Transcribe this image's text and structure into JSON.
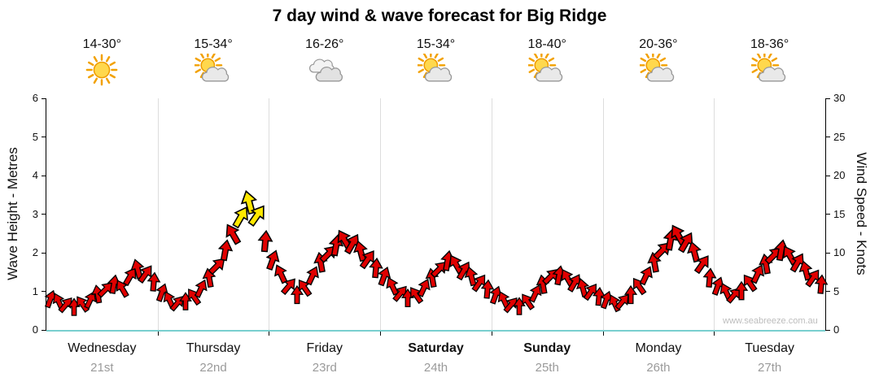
{
  "title": "7 day wind & wave forecast for Big Ridge",
  "watermark": "www.seabreeze.com.au",
  "days": [
    {
      "name": "Wednesday",
      "date": "21st",
      "temp": "14-30°",
      "icon": "sunny",
      "bold": false
    },
    {
      "name": "Thursday",
      "date": "22nd",
      "temp": "15-34°",
      "icon": "partly-cloudy",
      "bold": false
    },
    {
      "name": "Friday",
      "date": "23rd",
      "temp": "16-26°",
      "icon": "cloudy",
      "bold": false
    },
    {
      "name": "Saturday",
      "date": "24th",
      "temp": "15-34°",
      "icon": "partly-cloudy",
      "bold": true
    },
    {
      "name": "Sunday",
      "date": "25th",
      "temp": "18-40°",
      "icon": "partly-cloudy",
      "bold": true
    },
    {
      "name": "Monday",
      "date": "26th",
      "temp": "20-36°",
      "icon": "partly-cloudy",
      "bold": false
    },
    {
      "name": "Tuesday",
      "date": "27th",
      "temp": "18-36°",
      "icon": "partly-cloudy",
      "bold": false
    }
  ],
  "left_axis": {
    "label": "Wave Height - Metres",
    "min": 0,
    "max": 6,
    "ticks": [
      0,
      1,
      2,
      3,
      4,
      5,
      6
    ]
  },
  "right_axis": {
    "label": "Wind Speed - Knots",
    "min": 0,
    "max": 30,
    "ticks": [
      0,
      5,
      10,
      15,
      20,
      25,
      30
    ]
  },
  "chart_data": {
    "type": "scatter",
    "marker": "wind-arrow",
    "title": "7 day wind & wave forecast for Big Ridge",
    "x_categories": [
      "Wednesday 21st",
      "Thursday 22nd",
      "Friday 23rd",
      "Saturday 24th",
      "Sunday 25th",
      "Monday 26th",
      "Tuesday 27th"
    ],
    "points_per_day": 14,
    "ylabel_left": "Wave Height - Metres",
    "ylim_left": [
      0,
      6
    ],
    "ylabel_right": "Wind Speed - Knots",
    "ylim_right": [
      0,
      30
    ],
    "grid": "day-boundaries-only",
    "series": [
      {
        "name": "Wind speed (knots)",
        "speeds_knots": [
          4.0,
          3.7,
          3.3,
          3.0,
          3.4,
          3.9,
          4.6,
          5.3,
          5.9,
          5.4,
          6.9,
          7.9,
          7.3,
          6.2,
          4.8,
          3.9,
          3.5,
          3.7,
          4.3,
          5.4,
          6.7,
          8.3,
          10.3,
          12.4,
          14.6,
          16.5,
          14.8,
          11.5,
          9.1,
          7.3,
          5.7,
          4.5,
          5.5,
          7.1,
          8.7,
          9.9,
          10.9,
          11.7,
          11.2,
          10.2,
          9.2,
          8.0,
          6.9,
          5.7,
          4.7,
          4.1,
          4.5,
          5.5,
          6.7,
          7.9,
          8.9,
          8.5,
          7.7,
          6.9,
          6.1,
          5.3,
          4.5,
          3.9,
          3.3,
          3.1,
          3.7,
          4.7,
          5.9,
          6.9,
          7.1,
          6.7,
          6.1,
          5.5,
          4.9,
          4.3,
          3.9,
          3.5,
          3.7,
          4.5,
          5.7,
          7.1,
          8.7,
          10.3,
          11.7,
          12.3,
          11.4,
          10.1,
          8.5,
          6.7,
          5.7,
          4.9,
          4.5,
          5.1,
          6.1,
          7.3,
          8.5,
          9.7,
          10.3,
          9.7,
          8.7,
          7.7,
          6.7,
          5.9
        ],
        "directions_deg": [
          20,
          -25,
          40,
          0,
          -35,
          25,
          -10,
          45,
          10,
          -30,
          30,
          -15,
          35,
          5,
          20,
          -25,
          40,
          0,
          -35,
          25,
          -10,
          45,
          10,
          -30,
          30,
          -15,
          35,
          5,
          20,
          -25,
          40,
          0,
          -35,
          25,
          -10,
          45,
          10,
          -30,
          30,
          -15,
          35,
          5,
          20,
          -25,
          40,
          0,
          -35,
          25,
          -10,
          45,
          10,
          -30,
          30,
          -15,
          35,
          5,
          20,
          -25,
          40,
          0,
          -35,
          25,
          -10,
          45,
          10,
          -30,
          30,
          -15,
          35,
          5,
          20,
          -25,
          40,
          0,
          -35,
          25,
          -10,
          45,
          10,
          -30,
          30,
          -15,
          35,
          5,
          20,
          -25,
          40,
          0,
          -35,
          25,
          -10,
          45,
          10,
          -30,
          30,
          -15,
          35,
          5
        ]
      }
    ],
    "colors": {
      "arrow_normal": "#e00000",
      "arrow_strong": "#ffe800",
      "arrow_outline": "#000000",
      "strong_threshold_knots": 14,
      "baseline": "#79cfcf",
      "day_gridline": "#dddddd"
    }
  }
}
